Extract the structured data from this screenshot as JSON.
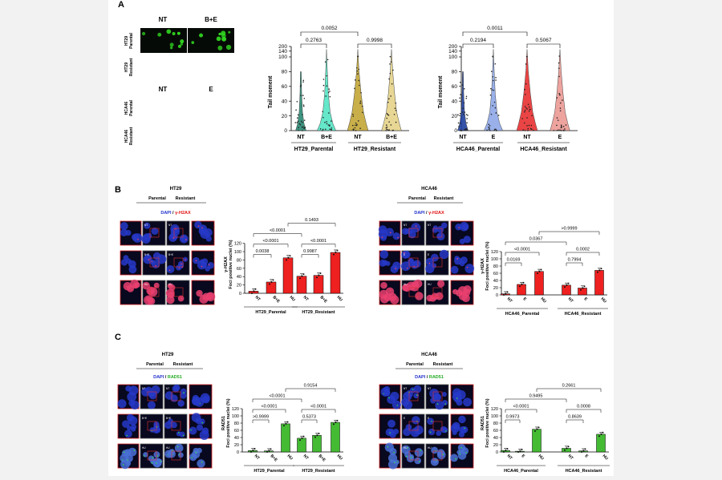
{
  "panels": {
    "A": "A",
    "B": "B",
    "C": "C"
  },
  "panel_a": {
    "col_headers_1": [
      "NT",
      "B+E"
    ],
    "row_labels_1": [
      [
        "HT29",
        "Parental"
      ],
      [
        "HT29",
        "Resistant"
      ]
    ],
    "col_headers_2": [
      "NT",
      "E"
    ],
    "row_labels_2": [
      [
        "HCA46",
        "Parental"
      ],
      [
        "HCA46",
        "Resistant"
      ]
    ],
    "comet_color": "#33dd22"
  },
  "panel_b": {
    "ht29_title": "HT29",
    "hca46_title": "HCA46",
    "col_headers": [
      "Parental",
      "Resistant"
    ],
    "stain_dapi": "DAPI",
    "stain_sep": " / ",
    "stain_target": "γ-H2AX",
    "ht29_cell_labels": [
      "NT",
      "B+E",
      "HU"
    ],
    "hca46_cell_labels": [
      "NT",
      "E",
      "HU"
    ]
  },
  "panel_c": {
    "ht29_title": "HT29",
    "hca46_title": "HCA46",
    "col_headers": [
      "Parental",
      "Resistant"
    ],
    "stain_dapi": "DAPI",
    "stain_sep": " / ",
    "stain_target": "RAD51",
    "ht29_cell_labels": [
      "NT",
      "B+E",
      "HU"
    ],
    "hca46_cell_labels": [
      "NT",
      "E",
      "HU"
    ]
  },
  "chart_data": [
    {
      "id": "a1",
      "type": "violin",
      "ylabel": "Tail moment",
      "yticks": [
        "0",
        "20",
        "40",
        "60",
        "80",
        "100",
        "140",
        "200"
      ],
      "categories": [
        "NT",
        "B+E",
        "NT",
        "B+E"
      ],
      "groups": [
        "HT29_Parental",
        "HT29_Resistant"
      ],
      "colors": [
        "#2a8a74",
        "#55e5c5",
        "#c4a737",
        "#e6d389"
      ],
      "brackets": [
        {
          "from": 0,
          "to": 2,
          "label": "0.0052",
          "level": 2
        },
        {
          "from": 0,
          "to": 1,
          "label": "0.2763",
          "level": 1
        },
        {
          "from": 2,
          "to": 3,
          "label": "0.9998",
          "level": 1
        }
      ]
    },
    {
      "id": "a2",
      "type": "violin",
      "ylabel": "Tail moment",
      "yticks": [
        "0",
        "20",
        "40",
        "60",
        "80",
        "100",
        "140",
        "200"
      ],
      "categories": [
        "NT",
        "E",
        "NT",
        "E"
      ],
      "groups": [
        "HCA46_Parental",
        "HCA46_Resistant"
      ],
      "colors": [
        "#2040a0",
        "#8ea8e8",
        "#e83030",
        "#ec9a94"
      ],
      "brackets": [
        {
          "from": 0,
          "to": 2,
          "label": "0.0011",
          "level": 2
        },
        {
          "from": 0,
          "to": 1,
          "label": "0.2194",
          "level": 1
        },
        {
          "from": 2,
          "to": 3,
          "label": "0.5067",
          "level": 1
        }
      ]
    },
    {
      "id": "b1",
      "type": "bar",
      "ylabel": "γ-H2AX",
      "ylabel2": "Foci  positive nuclei (%)",
      "ylim": [
        0,
        120
      ],
      "yticks": [
        "0",
        "20",
        "40",
        "60",
        "80",
        "100",
        "120"
      ],
      "categories": [
        "NT",
        "B+E",
        "HU",
        "NT",
        "B+E",
        "HU"
      ],
      "values": [
        5,
        27,
        85,
        41,
        43,
        98
      ],
      "groups": [
        "HT29_Parental",
        "HT29_Resistant"
      ],
      "color": "#ee2020",
      "brackets": [
        {
          "from": 0,
          "to": 3,
          "label": "<0.0001",
          "level": 3
        },
        {
          "from": 2,
          "to": 5,
          "label": "0.1493",
          "level": 4
        },
        {
          "from": 0,
          "to": 2,
          "label": "<0.0001",
          "level": 2
        },
        {
          "from": 0,
          "to": 1,
          "label": "0.0038",
          "level": 1
        },
        {
          "from": 3,
          "to": 5,
          "label": "<0.0001",
          "level": 2
        },
        {
          "from": 3,
          "to": 4,
          "label": "0.9987",
          "level": 1
        }
      ]
    },
    {
      "id": "b2",
      "type": "bar",
      "ylabel": "γ-H2AX",
      "ylabel2": "Foci  positive nuclei (%)",
      "ylim": [
        0,
        120
      ],
      "yticks": [
        "0",
        "20",
        "40",
        "60",
        "80",
        "100",
        "120"
      ],
      "categories": [
        "NT",
        "E",
        "HU",
        "NT",
        "E",
        "HU"
      ],
      "values": [
        3,
        29,
        65,
        27,
        19,
        68
      ],
      "groups": [
        "HCA46_Parental",
        "HCA46_Resistant"
      ],
      "color": "#ee2020",
      "brackets": [
        {
          "from": 0,
          "to": 3,
          "label": "0.0367",
          "level": 3
        },
        {
          "from": 2,
          "to": 5,
          "label": ">0.9999",
          "level": 4
        },
        {
          "from": 0,
          "to": 2,
          "label": "<0.0001",
          "level": 2
        },
        {
          "from": 0,
          "to": 1,
          "label": "0.0169",
          "level": 1
        },
        {
          "from": 3,
          "to": 5,
          "label": "0.0002",
          "level": 2
        },
        {
          "from": 3,
          "to": 4,
          "label": "0.7994",
          "level": 1
        }
      ]
    },
    {
      "id": "c1",
      "type": "bar",
      "ylabel": "RAD51",
      "ylabel2": "Foci  positive nuclei (%)",
      "ylim": [
        0,
        120
      ],
      "yticks": [
        "0",
        "20",
        "40",
        "60",
        "80",
        "100",
        "120"
      ],
      "categories": [
        "NT",
        "B+E",
        "HU",
        "NT",
        "B+E",
        "HU"
      ],
      "values": [
        4,
        3,
        78,
        38,
        46,
        82
      ],
      "groups": [
        "HT29_Parental",
        "HT29_Resistant"
      ],
      "color": "#44bb33",
      "brackets": [
        {
          "from": 0,
          "to": 3,
          "label": "<0.0001",
          "level": 3
        },
        {
          "from": 2,
          "to": 5,
          "label": "0.9154",
          "level": 4
        },
        {
          "from": 0,
          "to": 2,
          "label": "<0.0001",
          "level": 2
        },
        {
          "from": 0,
          "to": 1,
          "label": ">0.9999",
          "level": 1
        },
        {
          "from": 3,
          "to": 5,
          "label": "<0.0001",
          "level": 2
        },
        {
          "from": 3,
          "to": 4,
          "label": "0.5373",
          "level": 1
        }
      ]
    },
    {
      "id": "c2",
      "type": "bar",
      "ylabel": "RAD51",
      "ylabel2": "Foci  positive nuclei (%)",
      "ylim": [
        0,
        120
      ],
      "yticks": [
        "0",
        "20",
        "40",
        "60",
        "80",
        "100",
        "120"
      ],
      "categories": [
        "NT",
        "E",
        "HU",
        "NT",
        "E",
        "HU"
      ],
      "values": [
        4,
        2,
        63,
        10,
        3,
        49
      ],
      "groups": [
        "HCA46_Parental",
        "HCA46_Resistant"
      ],
      "color": "#44bb33",
      "brackets": [
        {
          "from": 0,
          "to": 3,
          "label": "0.9495",
          "level": 3
        },
        {
          "from": 2,
          "to": 5,
          "label": "0.2661",
          "level": 4
        },
        {
          "from": 0,
          "to": 2,
          "label": "<0.0001",
          "level": 2
        },
        {
          "from": 0,
          "to": 1,
          "label": "0.9973",
          "level": 1
        },
        {
          "from": 3,
          "to": 5,
          "label": "0.0008",
          "level": 2
        },
        {
          "from": 3,
          "to": 4,
          "label": "0.8639",
          "level": 1
        }
      ]
    }
  ]
}
